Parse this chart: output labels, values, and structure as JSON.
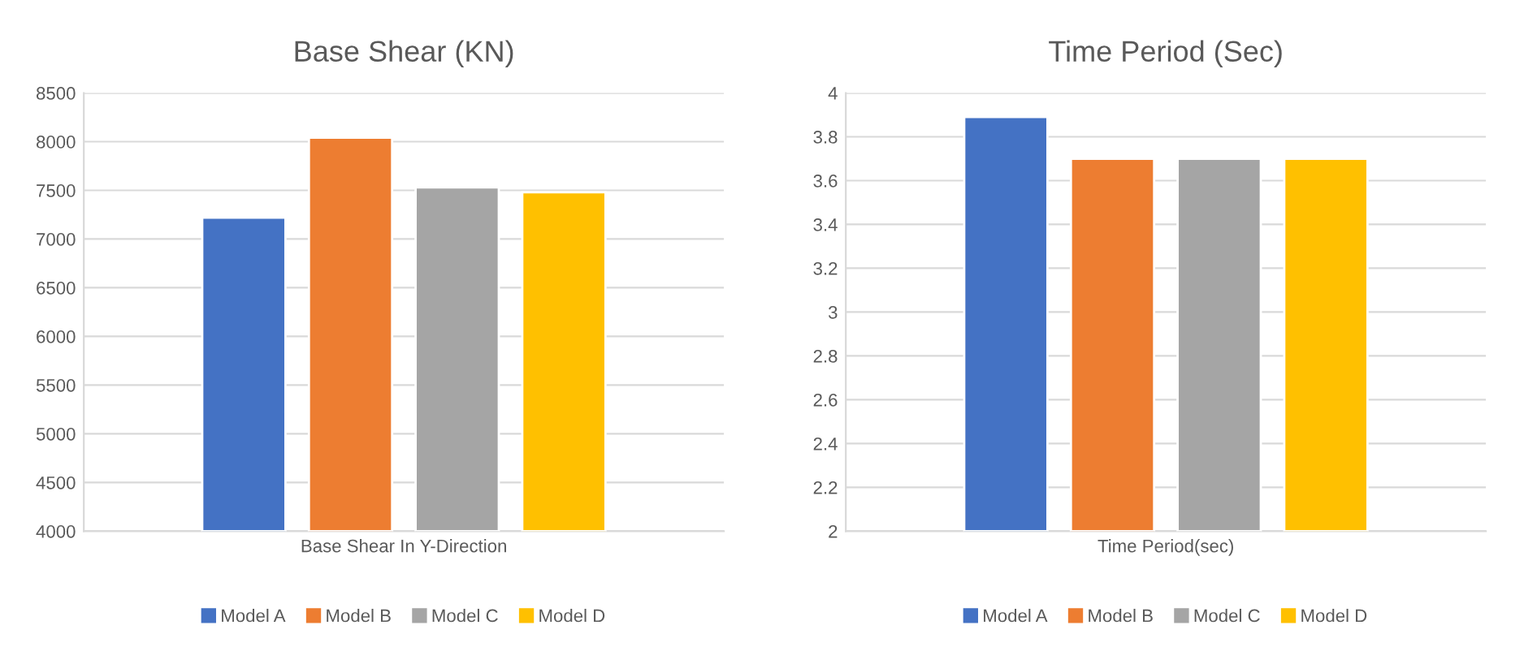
{
  "chart_data": [
    {
      "type": "bar",
      "title": "Base Shear (KN)",
      "categories": [
        "Base Shear In Y-Direction"
      ],
      "series": [
        {
          "name": "Model A",
          "color": "#4472c4",
          "values": [
            7220
          ]
        },
        {
          "name": "Model B",
          "color": "#ed7d31",
          "values": [
            8040
          ]
        },
        {
          "name": "Model C",
          "color": "#a5a5a5",
          "values": [
            7530
          ]
        },
        {
          "name": "Model D",
          "color": "#ffc000",
          "values": [
            7480
          ]
        }
      ],
      "ylim": [
        4000,
        8500
      ],
      "yticks": [
        4000,
        4500,
        5000,
        5500,
        6000,
        6500,
        7000,
        7500,
        8000,
        8500
      ],
      "grid": "y",
      "legend": "bottom"
    },
    {
      "type": "bar",
      "title": "Time Period (Sec)",
      "categories": [
        "Time Period(sec)"
      ],
      "series": [
        {
          "name": "Model A",
          "color": "#4472c4",
          "values": [
            3.89
          ]
        },
        {
          "name": "Model B",
          "color": "#ed7d31",
          "values": [
            3.7
          ]
        },
        {
          "name": "Model C",
          "color": "#a5a5a5",
          "values": [
            3.7
          ]
        },
        {
          "name": "Model D",
          "color": "#ffc000",
          "values": [
            3.7
          ]
        }
      ],
      "ylim": [
        2,
        4
      ],
      "yticks": [
        2,
        2.2,
        2.4,
        2.6,
        2.8,
        3,
        3.2,
        3.4,
        3.6,
        3.8,
        4
      ],
      "grid": "y",
      "legend": "bottom"
    }
  ]
}
